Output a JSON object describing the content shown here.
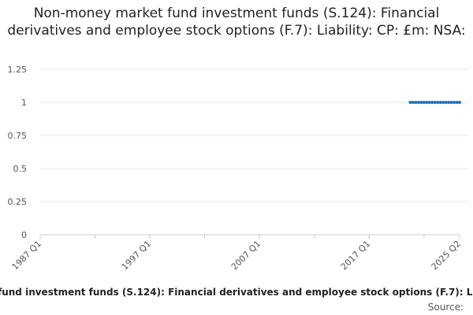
{
  "chart_data": {
    "type": "line",
    "title": "Non-money market fund investment funds (S.124): Financial derivatives and employee stock options (F.7): Liability: CP: £m: NSA:",
    "xlabel": "fund investment funds (S.124): Financial derivatives and employee stock options (F.7): L",
    "ylabel": "",
    "source_label": "Source:",
    "ylim": [
      0,
      1.25
    ],
    "y_ticks": [
      "0",
      "0.25",
      "0.5",
      "0.75",
      "1",
      "1.25"
    ],
    "x_ticks": [
      "1987 Q1",
      "1997 Q1",
      "2007 Q1",
      "2017 Q1",
      "2025 Q2"
    ],
    "grid": "horizontal",
    "colors": {
      "series": "#1f77b4",
      "grid": "#e6e6e6",
      "axis": "#cccccc"
    },
    "series": [
      {
        "x": [
          "2020 Q4",
          "2021 Q1",
          "2021 Q2",
          "2021 Q3",
          "2021 Q4",
          "2022 Q1",
          "2022 Q2",
          "2022 Q3",
          "2022 Q4",
          "2023 Q1",
          "2023 Q2",
          "2023 Q3",
          "2023 Q4",
          "2024 Q1",
          "2024 Q2",
          "2024 Q3",
          "2024 Q4",
          "2025 Q1",
          "2025 Q2"
        ],
        "values": [
          1,
          1,
          1,
          1,
          1,
          1,
          1,
          1,
          1,
          1,
          1,
          1,
          1,
          1,
          1,
          1,
          1,
          1,
          1
        ]
      }
    ]
  }
}
